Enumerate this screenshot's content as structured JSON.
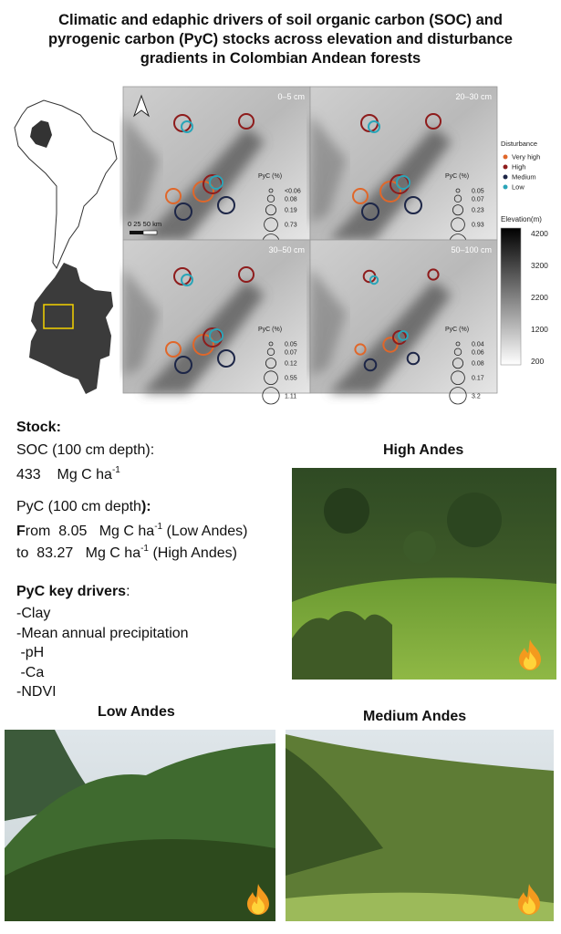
{
  "title": "Climatic and edaphic drivers of soil organic carbon (SOC) and pyrogenic carbon  (PyC) stocks across elevation and disturbance gradients in Colombian Andean forests",
  "maps": {
    "panels": [
      {
        "depth": "0–5 cm",
        "legend_title": "PyC (%)",
        "sizes": [
          "<0.06",
          "0.08",
          "0.19",
          "0.73",
          "1.53"
        ]
      },
      {
        "depth": "20–30 cm",
        "legend_title": "PyC (%)",
        "sizes": [
          "0.05",
          "0.07",
          "0.23",
          "0.93",
          "9.8"
        ]
      },
      {
        "depth": "30–50 cm",
        "legend_title": "PyC (%)",
        "sizes": [
          "0.05",
          "0.07",
          "0.12",
          "0.55",
          "1.11"
        ]
      },
      {
        "depth": "50–100 cm",
        "legend_title": "PyC (%)",
        "sizes": [
          "0.04",
          "0.06",
          "0.08",
          "0.17",
          "3.2"
        ]
      }
    ],
    "scale": "0   25  50 km",
    "disturbance": {
      "title": "Disturbance",
      "levels": [
        {
          "label": "Very high",
          "color": "#e0672a"
        },
        {
          "label": "High",
          "color": "#8e1c1c"
        },
        {
          "label": "Medium",
          "color": "#1d2647"
        },
        {
          "label": "Low",
          "color": "#2aa5b8"
        }
      ]
    },
    "elevation": {
      "title": "Elevation(m)",
      "ticks": [
        "4200",
        "3200",
        "2200",
        "1200",
        "200"
      ]
    }
  },
  "stock": {
    "heading": "Stock:",
    "soc_label": "SOC (100 cm depth):",
    "soc_value": "433",
    "unit": "Mg C ha",
    "unit_exp": "-1",
    "pyc_label": "PyC (100 cm depth",
    "pyc_close": "):",
    "from_initial": "F",
    "from_rest": "rom",
    "from_value": "8.05",
    "low": "(Low Andes)",
    "to": "to",
    "to_value": "83.27",
    "high": "(High Andes)"
  },
  "drivers": {
    "heading": "PyC key drivers",
    "colon": ":",
    "items": [
      "-Clay",
      "-Mean annual precipitation",
      " -pH",
      " -Ca",
      "-NDVI"
    ]
  },
  "photos": {
    "high": "High Andes",
    "low": "Low Andes",
    "medium": "Medium Andes"
  }
}
